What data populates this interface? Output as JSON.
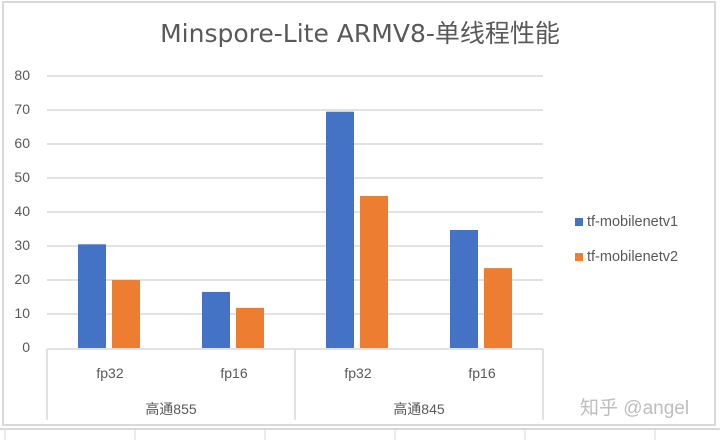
{
  "chart_data": {
    "type": "bar",
    "title": "Minspore-Lite ARMV8-单线程性能",
    "categories": [
      {
        "group": "高通855",
        "label": "fp32"
      },
      {
        "group": "高通855",
        "label": "fp16"
      },
      {
        "group": "高通845",
        "label": "fp32"
      },
      {
        "group": "高通845",
        "label": "fp16"
      }
    ],
    "groups": [
      "高通855",
      "高通845"
    ],
    "series": [
      {
        "name": "tf-mobilenetv1",
        "color": "#4472c4",
        "values": [
          30.5,
          16.5,
          69.5,
          34.7
        ]
      },
      {
        "name": "tf-mobilenetv2",
        "color": "#ed7d31",
        "values": [
          20,
          11.8,
          44.7,
          23.5
        ]
      }
    ],
    "xlabel": "",
    "ylabel": "",
    "ylim": [
      0,
      80
    ],
    "yticks": [
      0,
      10,
      20,
      30,
      40,
      50,
      60,
      70,
      80
    ],
    "grid": true,
    "legend_position": "right"
  },
  "watermark": "知乎 @angel"
}
